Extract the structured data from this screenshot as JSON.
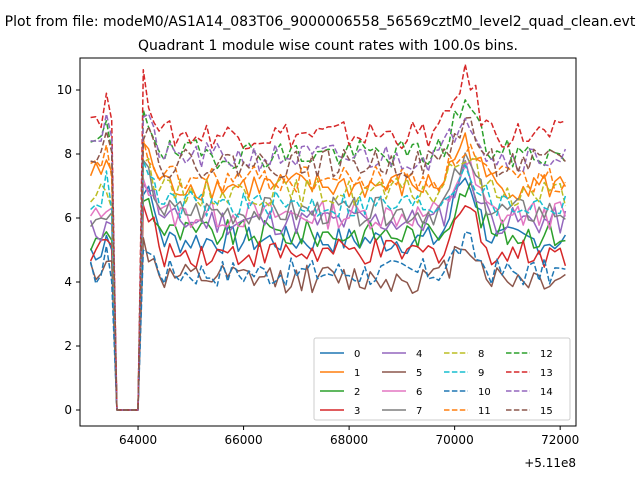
{
  "window": {
    "suptitle": "Plot from file: modeM0/AS1A14_083T06_9000006558_56569cztM0_level2_quad_clean.evt",
    "title": "Quadrant 1 module wise count rates with 100.0s bins."
  },
  "chart_data": {
    "type": "line",
    "title": "Quadrant 1 module wise count rates with 100.0s bins.",
    "xlabel": "",
    "ylabel": "",
    "x_offset_label": "+5.11e8",
    "xlim": [
      62900,
      72300
    ],
    "ylim": [
      -0.5,
      11.0
    ],
    "xticks": [
      64000,
      66000,
      68000,
      70000,
      72000
    ],
    "xtick_labels": [
      "64000",
      "66000",
      "68000",
      "70000",
      "72000"
    ],
    "yticks": [
      0,
      2,
      4,
      6,
      8,
      10
    ],
    "ytick_labels": [
      "0",
      "2",
      "4",
      "6",
      "8",
      "10"
    ],
    "grid": false,
    "legend_position": "lower-right",
    "x_start": 63100,
    "x_step": 100,
    "series": [
      {
        "name": "0",
        "color": "#1f77b4",
        "dash": "solid",
        "base": 5.3,
        "peak": 7.3,
        "start": 5.0
      },
      {
        "name": "1",
        "color": "#ff7f0e",
        "dash": "solid",
        "base": 7.0,
        "peak": 8.4,
        "start": 7.4
      },
      {
        "name": "2",
        "color": "#2ca02c",
        "dash": "solid",
        "base": 5.5,
        "peak": 7.0,
        "start": 5.2
      },
      {
        "name": "3",
        "color": "#d62728",
        "dash": "solid",
        "base": 4.9,
        "peak": 6.4,
        "start": 5.0
      },
      {
        "name": "4",
        "color": "#9467bd",
        "dash": "solid",
        "base": 5.9,
        "peak": 7.5,
        "start": 5.6
      },
      {
        "name": "5",
        "color": "#8c564b",
        "dash": "solid",
        "base": 4.1,
        "peak": 5.3,
        "start": 4.4
      },
      {
        "name": "6",
        "color": "#e377c2",
        "dash": "solid",
        "base": 6.1,
        "peak": 7.6,
        "start": 6.0
      },
      {
        "name": "7",
        "color": "#7f7f7f",
        "dash": "solid",
        "base": 6.2,
        "peak": 7.7,
        "start": 5.8
      },
      {
        "name": "8",
        "color": "#bcbd22",
        "dash": "dashed",
        "base": 6.8,
        "peak": 8.0,
        "start": 6.7
      },
      {
        "name": "9",
        "color": "#17becf",
        "dash": "dashed",
        "base": 6.4,
        "peak": 7.6,
        "start": 6.6
      },
      {
        "name": "10",
        "color": "#1f77b4",
        "dash": "dashed",
        "base": 4.3,
        "peak": 5.2,
        "start": 4.3
      },
      {
        "name": "11",
        "color": "#ff7f0e",
        "dash": "dashed",
        "base": 7.2,
        "peak": 8.2,
        "start": 7.5
      },
      {
        "name": "12",
        "color": "#2ca02c",
        "dash": "dashed",
        "base": 8.0,
        "peak": 9.6,
        "start": 8.3
      },
      {
        "name": "13",
        "color": "#d62728",
        "dash": "dashed",
        "base": 8.6,
        "peak": 10.4,
        "start": 9.2
      },
      {
        "name": "14",
        "color": "#9467bd",
        "dash": "dashed",
        "base": 7.9,
        "peak": 9.3,
        "start": 8.6
      },
      {
        "name": "15",
        "color": "#8c564b",
        "dash": "dashed",
        "base": 7.7,
        "peak": 9.0,
        "start": 8.1
      }
    ]
  }
}
